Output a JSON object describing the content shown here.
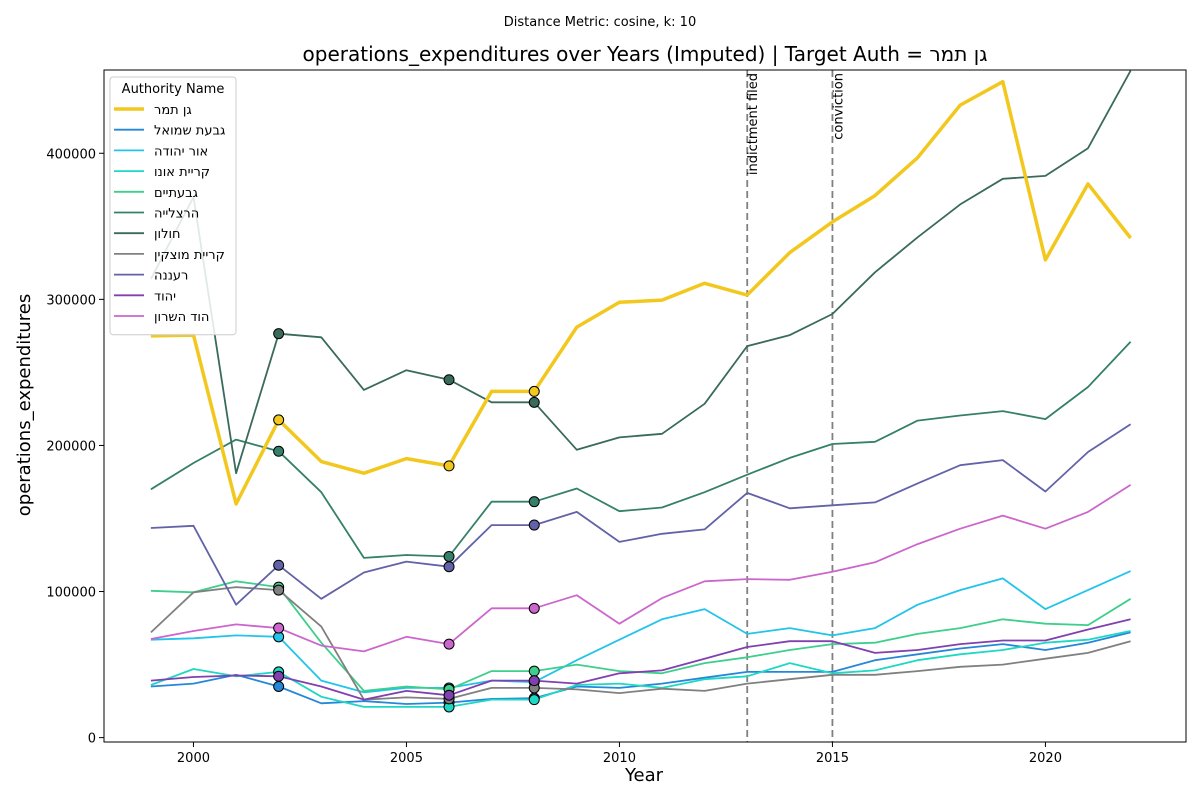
{
  "suptitle": "Distance Metric: cosine, k: 10",
  "chart_data": {
    "type": "line",
    "title": "operations_expenditures over Years (Imputed) | Target Auth = גן תמר",
    "xlabel": "Year",
    "ylabel": "operations_expenditures",
    "xlim": [
      1997.9,
      2023.3
    ],
    "ylim": [
      -3000,
      457000
    ],
    "x_ticks": [
      2000,
      2005,
      2010,
      2015,
      2020
    ],
    "y_ticks": [
      0,
      100000,
      200000,
      300000,
      400000
    ],
    "x_tick_labels": [
      "2000",
      "2005",
      "2010",
      "2015",
      "2020"
    ],
    "y_tick_labels": [
      "0",
      "100000",
      "200000",
      "300000",
      "400000"
    ],
    "grid": false,
    "legend": {
      "title": "Authority Name",
      "placement": "top-left"
    },
    "years": [
      1999,
      2000,
      2001,
      2002,
      2003,
      2004,
      2005,
      2006,
      2007,
      2008,
      2009,
      2010,
      2011,
      2012,
      2013,
      2014,
      2015,
      2016,
      2017,
      2018,
      2019,
      2020,
      2021,
      2022
    ],
    "imputed_years": [
      2002,
      2006,
      2008
    ],
    "vertical_lines": [
      {
        "x": 2013,
        "label": "indictment filed"
      },
      {
        "x": 2015,
        "label": "conviction"
      }
    ],
    "series": [
      {
        "name": "גן תמר",
        "color": "#f2c81e",
        "emphasis": true,
        "values": [
          275000,
          275500,
          160000,
          217500,
          189000,
          181000,
          191000,
          186000,
          237000,
          237000,
          281000,
          298000,
          299500,
          311000,
          303000,
          332000,
          353000,
          371000,
          397000,
          433000,
          449000,
          327000,
          379000,
          342000
        ]
      },
      {
        "name": "גבעת שמואל",
        "color": "#2587d8",
        "values": [
          35000,
          37000,
          43000,
          35000,
          23500,
          25000,
          23000,
          24000,
          26500,
          27000,
          35000,
          34000,
          37000,
          41000,
          45000,
          45000,
          45000,
          53000,
          57000,
          61000,
          64000,
          60000,
          65000,
          72000
        ]
      },
      {
        "name": "אור יהודה",
        "color": "#22c4ea",
        "values": [
          67000,
          68000,
          70000,
          69000,
          39000,
          31000,
          34000,
          34000,
          39000,
          38000,
          53000,
          67000,
          81000,
          88000,
          71000,
          75000,
          70000,
          75000,
          91000,
          101000,
          109000,
          88000,
          101000,
          114000
        ]
      },
      {
        "name": "קריית אונו",
        "color": "#1fd8c3",
        "values": [
          36000,
          47000,
          42000,
          45000,
          28000,
          21000,
          21000,
          21000,
          26000,
          26000,
          36000,
          37000,
          34000,
          40000,
          42000,
          51000,
          44000,
          46000,
          53000,
          57000,
          60000,
          65000,
          67000,
          73000
        ]
      },
      {
        "name": "גבעתיים",
        "color": "#3dcf8b",
        "values": [
          100500,
          99500,
          107000,
          103000,
          65000,
          32000,
          35000,
          33000,
          45500,
          45500,
          50000,
          45500,
          44000,
          51000,
          55000,
          60000,
          64000,
          65000,
          71000,
          75000,
          81000,
          78000,
          77000,
          95000
        ]
      },
      {
        "name": "הרצלייה",
        "color": "#35806a",
        "values": [
          170000,
          188000,
          204000,
          196000,
          168000,
          123000,
          125000,
          124000,
          161500,
          161500,
          170500,
          155000,
          157500,
          168000,
          180000,
          191500,
          201000,
          202500,
          217000,
          220500,
          223500,
          218000,
          240000,
          271000
        ]
      },
      {
        "name": "חולון",
        "color": "#3a6a5c",
        "values": [
          314000,
          370000,
          181000,
          276500,
          274000,
          238000,
          251500,
          245000,
          229500,
          229500,
          197000,
          205500,
          208000,
          228500,
          268000,
          275500,
          290000,
          318500,
          342500,
          365000,
          382500,
          384500,
          403500,
          456500
        ]
      },
      {
        "name": "קריית מוצקין",
        "color": "#808080",
        "values": [
          72000,
          99500,
          103000,
          101000,
          76000,
          26000,
          27500,
          26500,
          34000,
          34000,
          33000,
          30500,
          33500,
          32000,
          37000,
          40000,
          43000,
          43000,
          45500,
          48500,
          50000,
          54000,
          58000,
          66000
        ]
      },
      {
        "name": "רעננה",
        "color": "#6262a8",
        "values": [
          143500,
          145000,
          91000,
          118000,
          95000,
          113000,
          120500,
          117000,
          145500,
          145500,
          154500,
          134000,
          139500,
          142500,
          167500,
          157000,
          159000,
          161000,
          174000,
          186500,
          190000,
          168500,
          195500,
          214500
        ]
      },
      {
        "name": "יהוד",
        "color": "#8040b0",
        "values": [
          39000,
          41500,
          42500,
          42000,
          35000,
          26000,
          32000,
          29000,
          39000,
          39000,
          37000,
          44000,
          46000,
          54000,
          62000,
          66000,
          66000,
          58000,
          60000,
          64000,
          66500,
          66500,
          74000,
          81000
        ]
      },
      {
        "name": "הוד השרון",
        "color": "#cc66cc",
        "values": [
          67500,
          73000,
          77500,
          75000,
          63000,
          59000,
          69000,
          64000,
          88500,
          88500,
          97500,
          78000,
          95500,
          107000,
          108500,
          108000,
          113500,
          120000,
          132500,
          143000,
          152000,
          143000,
          154500,
          173000
        ]
      }
    ]
  }
}
